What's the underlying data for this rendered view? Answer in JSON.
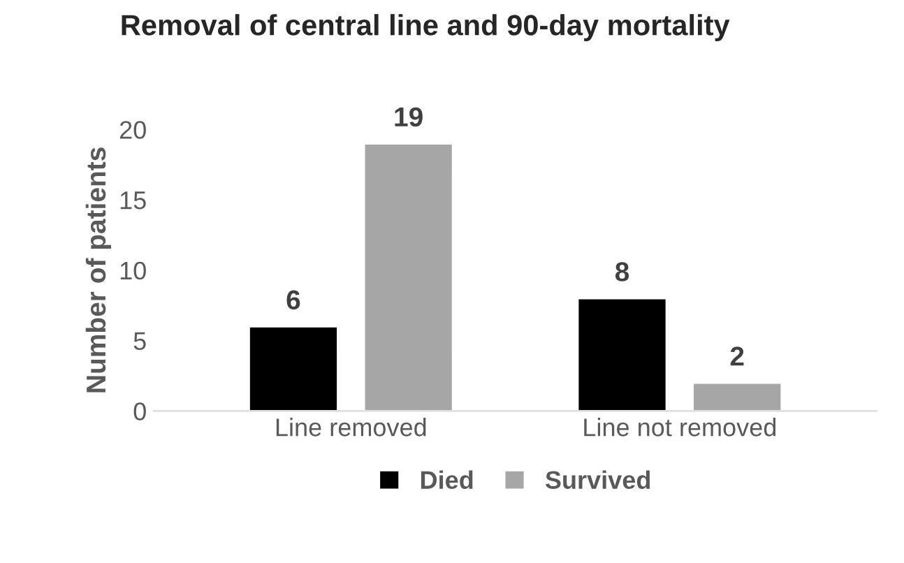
{
  "chart_data": {
    "type": "bar",
    "title": "Removal of central line and 90-day mortality",
    "ylabel": "Number of patients",
    "categories": [
      "Line removed",
      "Line not removed"
    ],
    "series": [
      {
        "name": "Died",
        "color": "#000000",
        "values": [
          6,
          8
        ]
      },
      {
        "name": "Survived",
        "color": "#a6a6a6",
        "values": [
          19,
          2
        ]
      }
    ],
    "ylim": [
      0,
      20
    ],
    "yticks": [
      0,
      5,
      10,
      15,
      20
    ],
    "grid": false,
    "legend": "bottom",
    "data_labels": true
  }
}
